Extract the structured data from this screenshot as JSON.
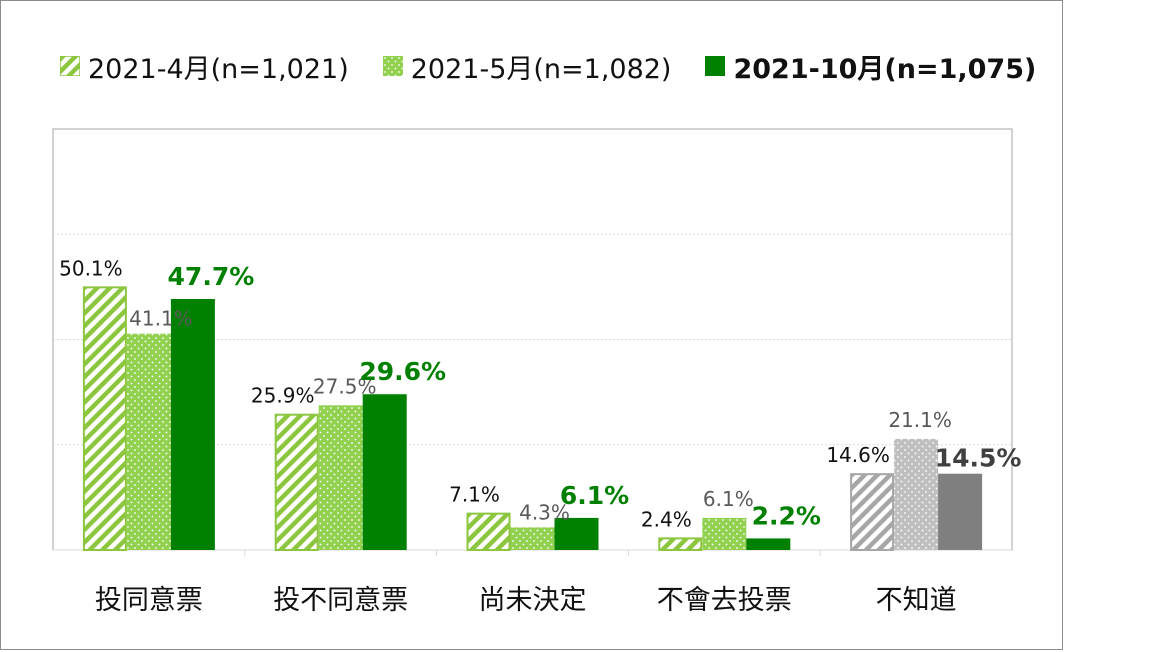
{
  "chart_data": {
    "type": "bar",
    "title": "",
    "xlabel": "",
    "ylabel": "",
    "ylim": [
      0,
      80
    ],
    "grid": true,
    "legend_position": "top",
    "categories": [
      "投同意票",
      "投不同意票",
      "尚未決定",
      "不會去投票",
      "不知道"
    ],
    "series": [
      {
        "name": "2021-4月(n=1,021)",
        "pattern": "diagonal-hatch",
        "values": [
          50.1,
          25.9,
          7.1,
          2.4,
          14.6
        ]
      },
      {
        "name": "2021-5月(n=1,082)",
        "pattern": "dotted",
        "values": [
          41.1,
          27.5,
          4.3,
          6.1,
          21.1
        ]
      },
      {
        "name": "2021-10月(n=1,075)",
        "pattern": "solid",
        "values": [
          47.7,
          29.6,
          6.1,
          2.2,
          14.5
        ]
      }
    ],
    "labels": [
      [
        "50.1%",
        "25.9%",
        "7.1%",
        "2.4%",
        "14.6%"
      ],
      [
        "41.1%",
        "27.5%",
        "4.3%",
        "6.1%",
        "21.1%"
      ],
      [
        "47.7%",
        "29.6%",
        "6.1%",
        "2.2%",
        "14.5%"
      ]
    ]
  },
  "colors": {
    "hatch_green": "#8cc63f",
    "dot_green": "#92d050",
    "solid_green": "#008000",
    "label_green": "#008000",
    "hatch_gray": "#a6a6a6",
    "dot_gray": "#bfbfbf",
    "solid_gray": "#7f7f7f",
    "label_gray_bold": "#404040",
    "label_gray": "#595959",
    "label_dark": "#111111",
    "grid": "#d9d9d9"
  }
}
